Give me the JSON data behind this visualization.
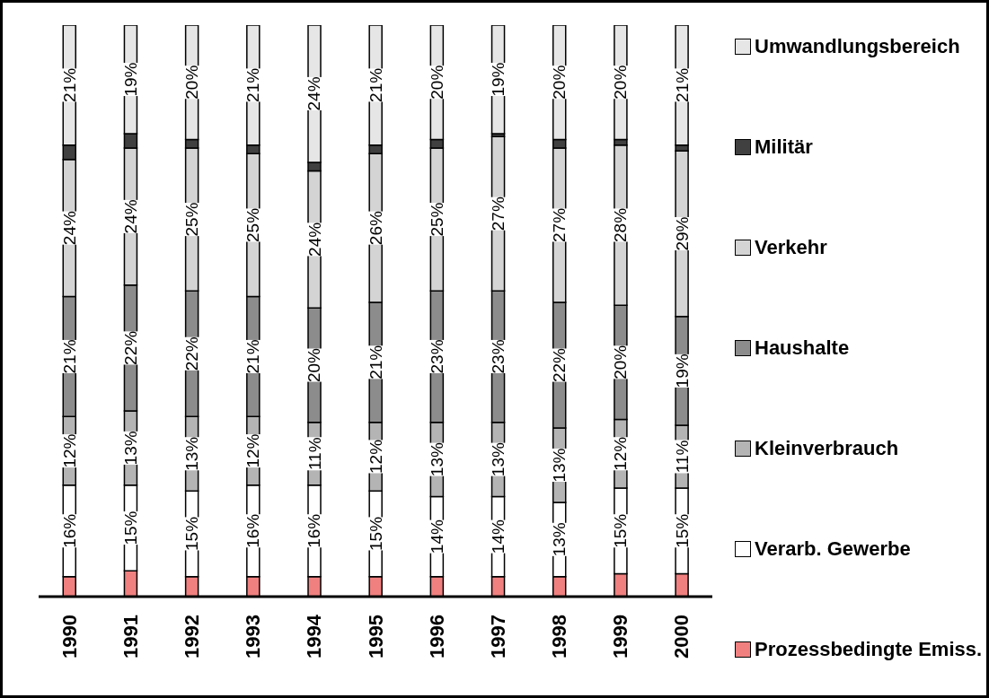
{
  "chart_data": {
    "type": "bar",
    "stacked": true,
    "legend": "right",
    "categories": [
      "1990",
      "1991",
      "1992",
      "1993",
      "1994",
      "1995",
      "1996",
      "1997",
      "1998",
      "1999",
      "2000"
    ],
    "series": [
      {
        "name": "Prozessbedingte Emiss.",
        "color": "#f08080",
        "values": [
          3.5,
          4.5,
          3.5,
          3.5,
          3.5,
          3.5,
          3.5,
          3.5,
          3.5,
          4,
          4
        ],
        "value_labels": [
          null,
          null,
          null,
          null,
          null,
          null,
          null,
          null,
          null,
          null,
          null
        ]
      },
      {
        "name": "Verarb. Gewerbe",
        "color": "#ffffff",
        "values": [
          16,
          15,
          15,
          16,
          16,
          15,
          14,
          14,
          13,
          15,
          15
        ],
        "value_labels": [
          "16%",
          "15%",
          "15%",
          "16%",
          "16%",
          "15%",
          "14%",
          "14%",
          "13%",
          "15%",
          "15%"
        ]
      },
      {
        "name": "Kleinverbrauch",
        "color": "#b4b4b4",
        "values": [
          12,
          13,
          13,
          12,
          11,
          12,
          13,
          13,
          13,
          12,
          11
        ],
        "value_labels": [
          "12%",
          "13%",
          "13%",
          "12%",
          "11%",
          "12%",
          "13%",
          "13%",
          "13%",
          "12%",
          "11%"
        ]
      },
      {
        "name": "Haushalte",
        "color": "#8c8c8c",
        "values": [
          21,
          22,
          22,
          21,
          20,
          21,
          23,
          23,
          22,
          20,
          19
        ],
        "value_labels": [
          "21%",
          "22%",
          "22%",
          "21%",
          "20%",
          "21%",
          "23%",
          "23%",
          "22%",
          "20%",
          "19%"
        ]
      },
      {
        "name": "Verkehr",
        "color": "#d4d4d4",
        "values": [
          24,
          24,
          25,
          25,
          24,
          26,
          25,
          27,
          27,
          28,
          29
        ],
        "value_labels": [
          "24%",
          "24%",
          "25%",
          "25%",
          "24%",
          "26%",
          "25%",
          "27%",
          "27%",
          "28%",
          "29%"
        ]
      },
      {
        "name": "Militär",
        "color": "#404040",
        "values": [
          2.5,
          2.5,
          1.5,
          1.5,
          1.5,
          1.5,
          1.5,
          0.5,
          1.5,
          1,
          1
        ],
        "value_labels": [
          null,
          null,
          null,
          null,
          null,
          null,
          null,
          null,
          null,
          null,
          null
        ]
      },
      {
        "name": "Umwandlungsbereich",
        "color": "#e6e6e6",
        "values": [
          21,
          19,
          20,
          21,
          24,
          21,
          20,
          19,
          20,
          20,
          21
        ],
        "value_labels": [
          "21%",
          "19%",
          "20%",
          "21%",
          "24%",
          "21%",
          "20%",
          "19%",
          "20%",
          "20%",
          "21%"
        ]
      }
    ]
  }
}
